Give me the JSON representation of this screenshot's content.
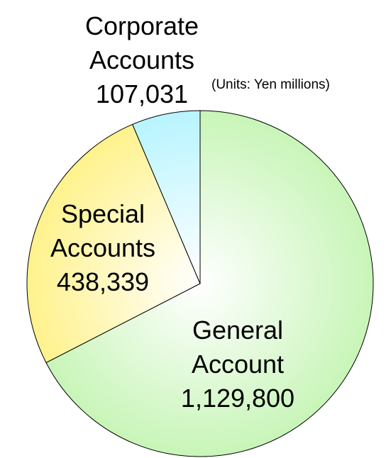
{
  "chart_data": {
    "type": "pie",
    "note": "(Units: Yen millions)",
    "categories": [
      "General Account",
      "Special Accounts",
      "Corporate Accounts"
    ],
    "values": [
      1129800,
      438339,
      107031
    ],
    "value_labels": [
      "1,129,800",
      "438,339",
      "107,031"
    ],
    "colors": [
      "#c8f5b8",
      "#fff28c",
      "#b8f4ff"
    ]
  }
}
